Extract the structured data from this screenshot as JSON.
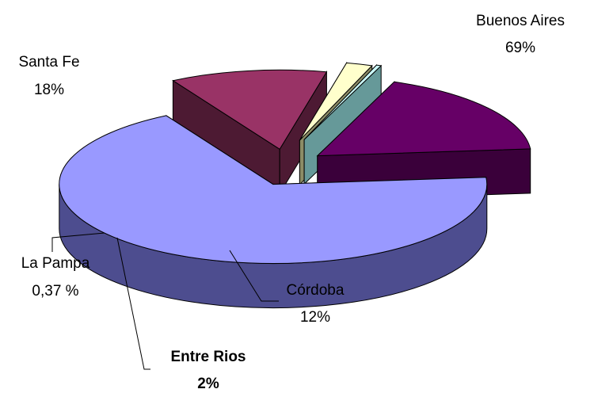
{
  "chart_data": {
    "type": "pie",
    "style": "3d-exploded",
    "slices": [
      {
        "label": "Buenos Aires",
        "value_label": "69%",
        "value": 69,
        "top": "#9999ff",
        "side": "#4d4d8f",
        "bold": false
      },
      {
        "label": "Córdoba",
        "value_label": "12%",
        "value": 12,
        "top": "#993366",
        "side": "#4d1a33",
        "bold": false
      },
      {
        "label": "Entre Rios",
        "value_label": "2%",
        "value": 2,
        "top": "#ffffcc",
        "side": "#8c8c66",
        "bold": true
      },
      {
        "label": "La Pampa",
        "value_label": "0,37 %",
        "value": 0.37,
        "top": "#ccffff",
        "side": "#669999",
        "bold": false
      },
      {
        "label": "Santa Fe",
        "value_label": "18%",
        "value": 18,
        "top": "#660066",
        "side": "#3a003a",
        "bold": false
      }
    ]
  }
}
